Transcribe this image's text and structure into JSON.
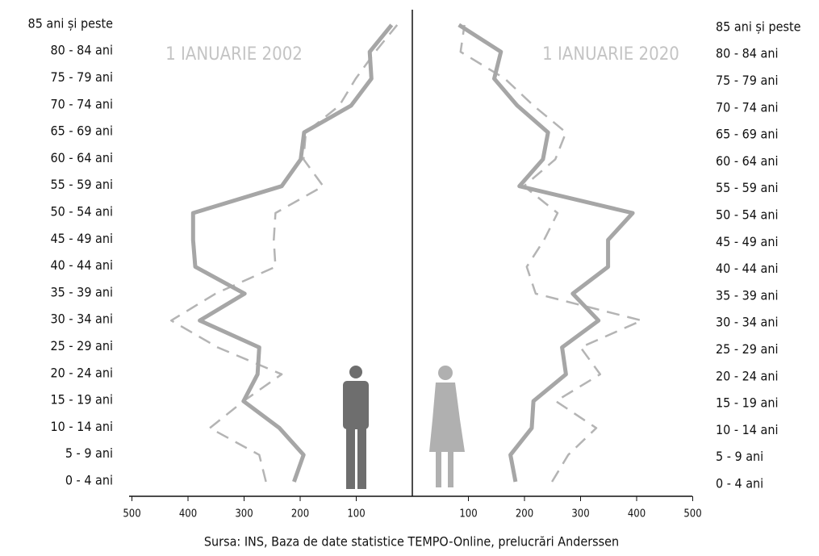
{
  "chart_data": {
    "type": "pyramid-lines",
    "categories": [
      "0 - 4 ani",
      "5 - 9 ani",
      "10 - 14 ani",
      "15 - 19 ani",
      "20 - 24 ani",
      "25 - 29 ani",
      "30 - 34 ani",
      "35 - 39 ani",
      "40 - 44 ani",
      "45 - 49 ani",
      "50 - 54 ani",
      "55 - 59 ani",
      "60 - 64 ani",
      "65 - 69 ani",
      "70 - 74 ani",
      "75 - 79 ani",
      "80 - 84 ani",
      "85 ani și peste"
    ],
    "series": [
      {
        "name": "1 IANUARIE 2002",
        "color": "#b4b4b4",
        "dashed": true,
        "left_values": [
          261,
          273,
          361,
          301,
          233,
          347,
          430,
          351,
          244,
          247,
          244,
          159,
          194,
          190,
          130,
          101,
          66,
          27
        ],
        "right_values": [
          249,
          278,
          328,
          256,
          335,
          300,
          409,
          220,
          204,
          235,
          259,
          199,
          255,
          274,
          216,
          165,
          86,
          93
        ]
      },
      {
        "name": "1 IANUARIE 2020",
        "color": "#a6a6a6",
        "dashed": false,
        "left_values": [
          211,
          194,
          237,
          301,
          276,
          273,
          379,
          299,
          387,
          391,
          391,
          233,
          199,
          193,
          109,
          73,
          76,
          37
        ],
        "right_values": [
          184,
          175,
          213,
          216,
          274,
          267,
          332,
          286,
          349,
          349,
          393,
          191,
          233,
          242,
          187,
          146,
          158,
          83
        ]
      }
    ],
    "xlim": [
      0,
      500
    ],
    "left_xticks": [
      500,
      400,
      300,
      200,
      100
    ],
    "right_xticks": [
      100,
      200,
      300,
      400,
      500
    ],
    "source": "Sursa: INS, Baza de date statistice TEMPO-Online, prelucrări Anderssen"
  }
}
